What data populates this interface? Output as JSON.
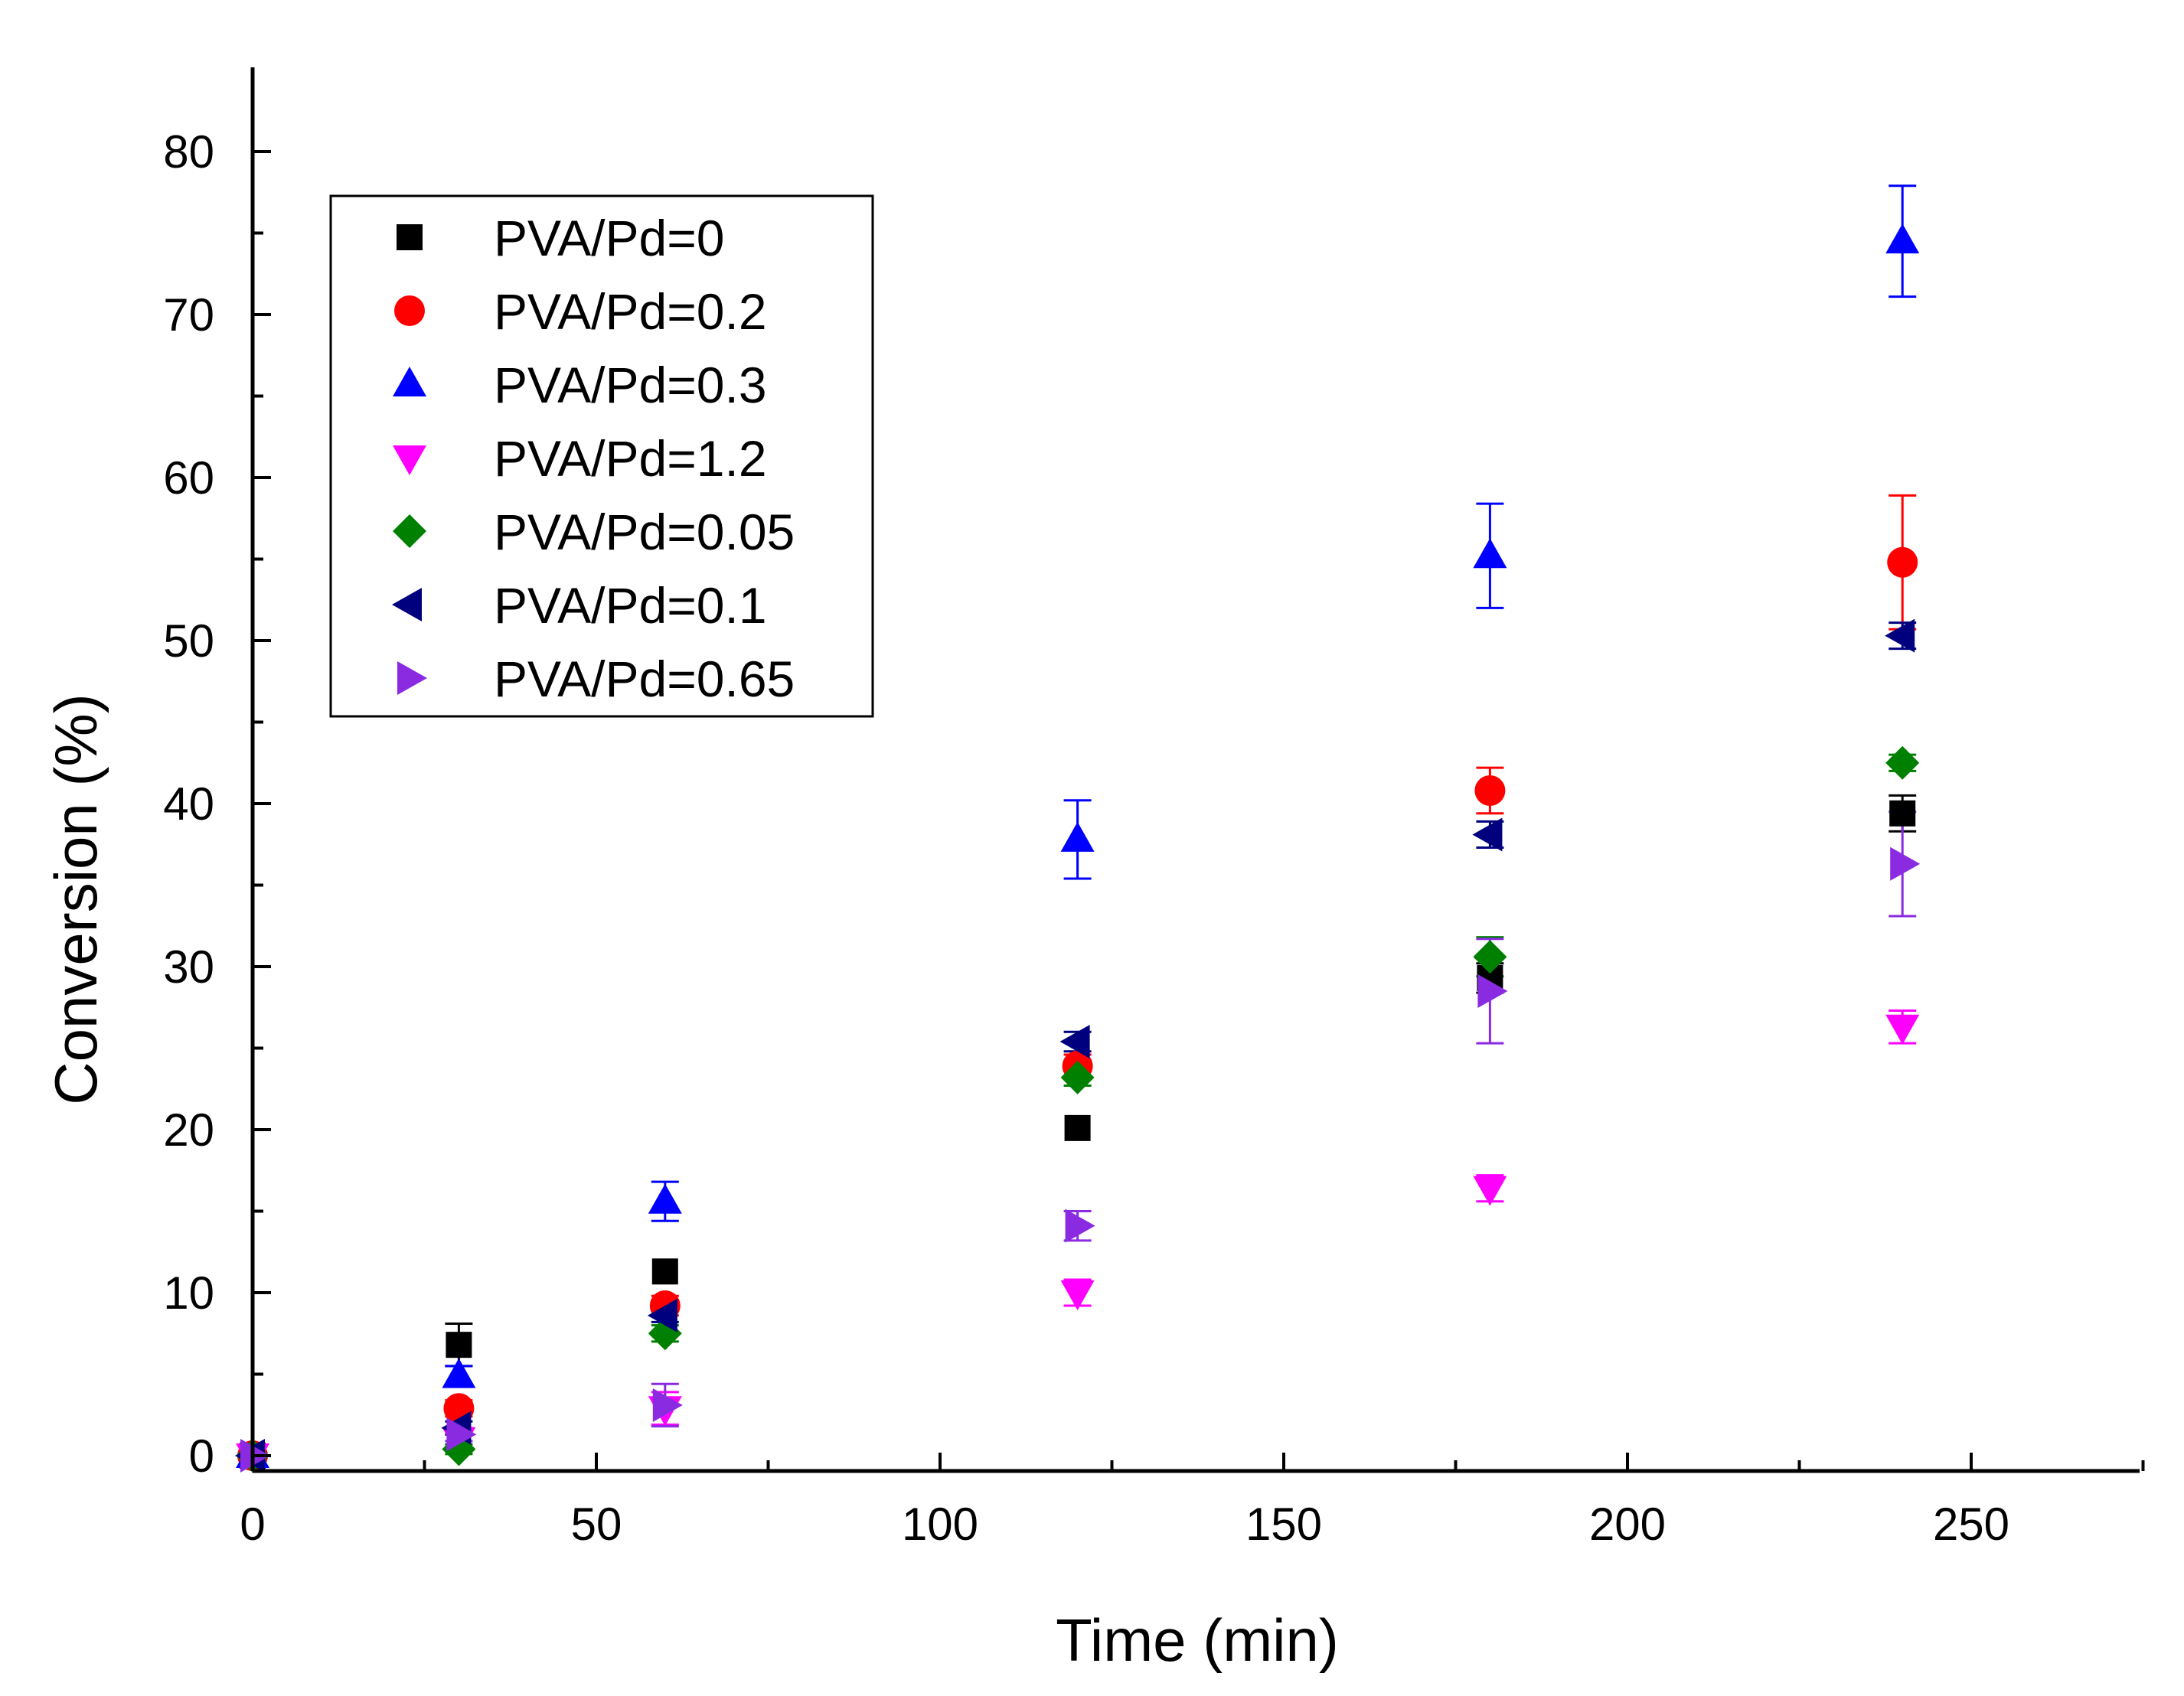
{
  "chart_data": {
    "type": "scatter",
    "title": "",
    "xlabel": "Time (min)",
    "ylabel": "Conversion (%)",
    "xlim": [
      0,
      275
    ],
    "ylim": [
      -1,
      85
    ],
    "x_ticks": [
      0,
      50,
      100,
      150,
      200,
      250
    ],
    "y_ticks": [
      0,
      10,
      20,
      30,
      40,
      50,
      60,
      70,
      80
    ],
    "x_tick_labels": [
      "0",
      "50",
      "100",
      "150",
      "200",
      "250"
    ],
    "y_tick_labels": [
      "0",
      "10",
      "20",
      "30",
      "40",
      "50",
      "60",
      "70",
      "80"
    ],
    "grid": false,
    "legend_position": "top-left",
    "series": [
      {
        "name": "PVA/Pd=0",
        "marker": "square",
        "color": "#000000",
        "x": [
          0,
          30,
          60,
          120,
          180,
          240
        ],
        "y": [
          0,
          6.8,
          11.3,
          20.1,
          29.3,
          39.4
        ],
        "err": [
          0,
          1.3,
          0,
          0,
          0.9,
          1.1
        ]
      },
      {
        "name": "PVA/Pd=0.2",
        "marker": "circle",
        "color": "#ff0000",
        "x": [
          0,
          30,
          60,
          120,
          180,
          240
        ],
        "y": [
          0,
          2.9,
          9.2,
          23.9,
          40.8,
          54.8
        ],
        "err": [
          0,
          0.5,
          0.6,
          0.7,
          1.4,
          4.1
        ]
      },
      {
        "name": "PVA/Pd=0.3",
        "marker": "triangle-up",
        "color": "#0000ff",
        "x": [
          0,
          30,
          60,
          120,
          180,
          240
        ],
        "y": [
          0,
          4.9,
          15.6,
          37.8,
          55.2,
          74.5
        ],
        "err": [
          0,
          0.6,
          1.2,
          2.4,
          3.2,
          3.4
        ]
      },
      {
        "name": "PVA/Pd=1.2",
        "marker": "triangle-down",
        "color": "#ff00ff",
        "x": [
          0,
          30,
          60,
          120,
          180,
          240
        ],
        "y": [
          0,
          1.0,
          2.9,
          10.0,
          16.4,
          26.3
        ],
        "err": [
          0,
          0.3,
          1.0,
          0.8,
          0.8,
          1.0
        ]
      },
      {
        "name": "PVA/Pd=0.05",
        "marker": "diamond",
        "color": "#008000",
        "x": [
          0,
          30,
          60,
          120,
          180,
          240
        ],
        "y": [
          0,
          0.4,
          7.5,
          23.2,
          30.6,
          42.5
        ],
        "err": [
          0,
          0.3,
          0.5,
          0.5,
          1.2,
          0.5
        ]
      },
      {
        "name": "PVA/Pd=0.1",
        "marker": "triangle-left",
        "color": "#00007f",
        "x": [
          0,
          30,
          60,
          120,
          180,
          240
        ],
        "y": [
          0,
          1.7,
          8.6,
          25.4,
          38.1,
          50.3
        ],
        "err": [
          0,
          0.4,
          0.4,
          0.6,
          0.8,
          0.8
        ]
      },
      {
        "name": "PVA/Pd=0.65",
        "marker": "triangle-right",
        "color": "#8a2be2",
        "x": [
          0,
          30,
          60,
          120,
          180,
          240
        ],
        "y": [
          0,
          1.3,
          3.1,
          14.1,
          28.5,
          36.3
        ],
        "err": [
          0,
          0.4,
          1.3,
          0.9,
          3.2,
          3.2
        ]
      }
    ]
  }
}
